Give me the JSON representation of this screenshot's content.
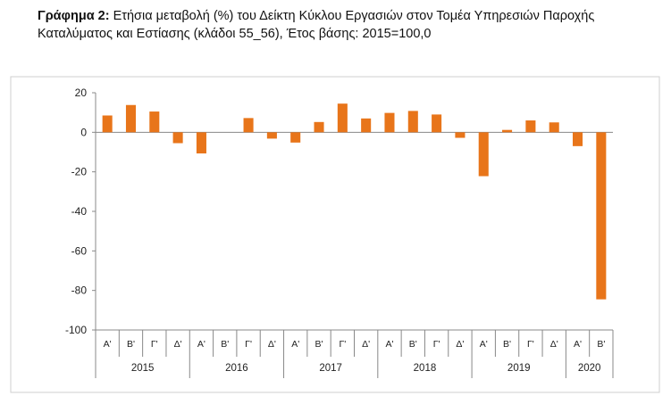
{
  "title": {
    "prefix": "Γράφημα 2:",
    "text": " Ετήσια μεταβολή (%) του Δείκτη Κύκλου Εργασιών στον Τομέα Υπηρεσιών Παροχής Καταλύματος και Εστίασης (κλάδοι 55_56), Έτος βάσης: 2015=100,0"
  },
  "chart_data": {
    "type": "bar",
    "title": "",
    "xlabel": "",
    "ylabel": "",
    "ylim": [
      -100,
      20
    ],
    "yticks": [
      20,
      0,
      -20,
      -40,
      -60,
      -80,
      -100
    ],
    "grid": false,
    "legend": "none",
    "bar_color": "#E8751A",
    "years": [
      "2015",
      "2016",
      "2017",
      "2018",
      "2019",
      "2020"
    ],
    "year_quarter_counts": [
      4,
      4,
      4,
      4,
      4,
      2
    ],
    "categories": [
      "Α'",
      "Β'",
      "Γ'",
      "Δ'",
      "Α'",
      "Β'",
      "Γ'",
      "Δ'",
      "Α'",
      "Β'",
      "Γ'",
      "Δ'",
      "Α'",
      "Β'",
      "Γ'",
      "Δ'",
      "Α'",
      "Β'",
      "Γ'",
      "Δ'",
      "Α'",
      "Β'"
    ],
    "values": [
      8.5,
      13.8,
      10.5,
      -5.5,
      -10.7,
      0,
      7.2,
      -3.2,
      -5.2,
      5.2,
      14.5,
      7.0,
      9.8,
      10.8,
      9.0,
      -2.8,
      -22.2,
      1.2,
      6.0,
      5.0,
      -7.0,
      -84.5
    ]
  }
}
